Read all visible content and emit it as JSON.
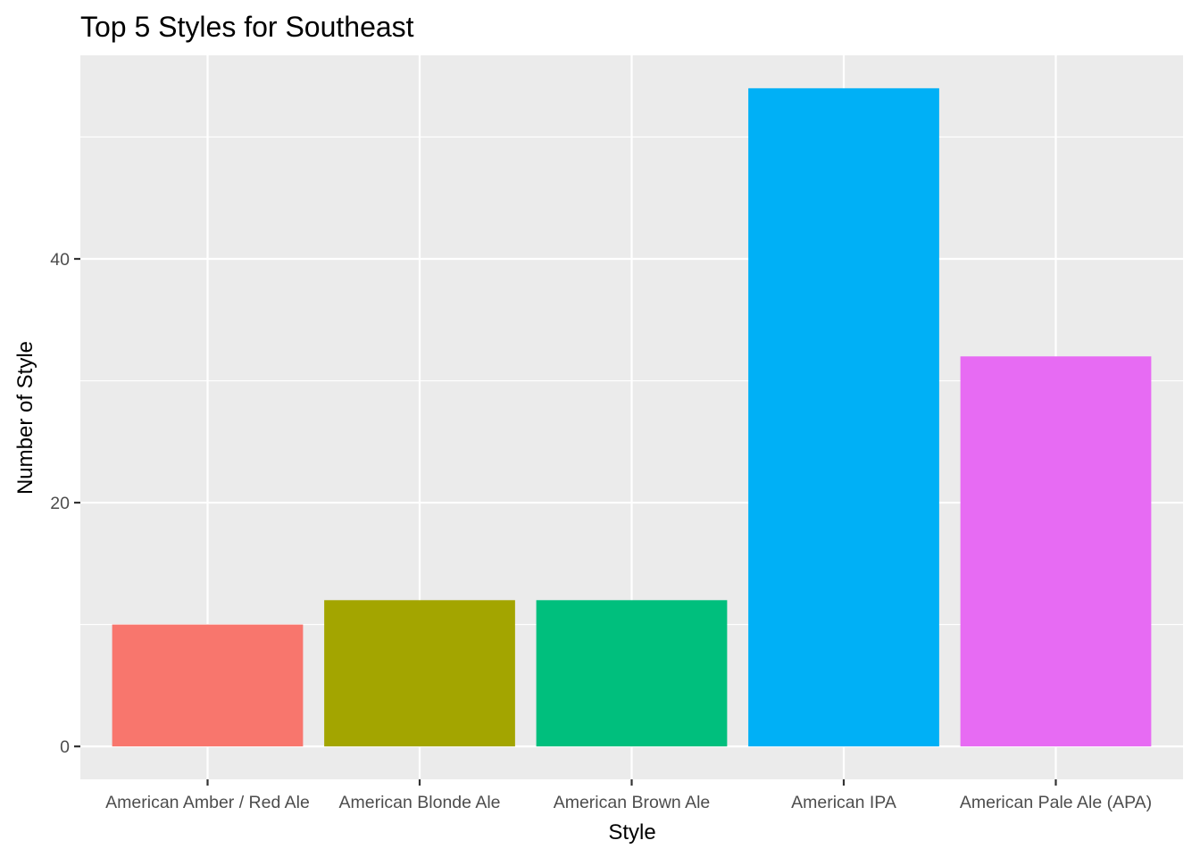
{
  "chart_data": {
    "type": "bar",
    "title": "Top 5 Styles for Southeast",
    "xlabel": "Style",
    "ylabel": "Number of Style",
    "categories": [
      "American Amber / Red Ale",
      "American Blonde Ale",
      "American Brown Ale",
      "American IPA",
      "American Pale Ale (APA)"
    ],
    "values": [
      10,
      12,
      12,
      54,
      32
    ],
    "colors": [
      "#F8766D",
      "#A3A500",
      "#00BF7D",
      "#00B0F6",
      "#E76BF3"
    ],
    "yticks": [
      0,
      20,
      40
    ],
    "ylim": [
      -2.7,
      56.7
    ],
    "grid": true,
    "legend": "none",
    "panel_background": "#EBEBEB",
    "gridline_color": "#FFFFFF"
  }
}
